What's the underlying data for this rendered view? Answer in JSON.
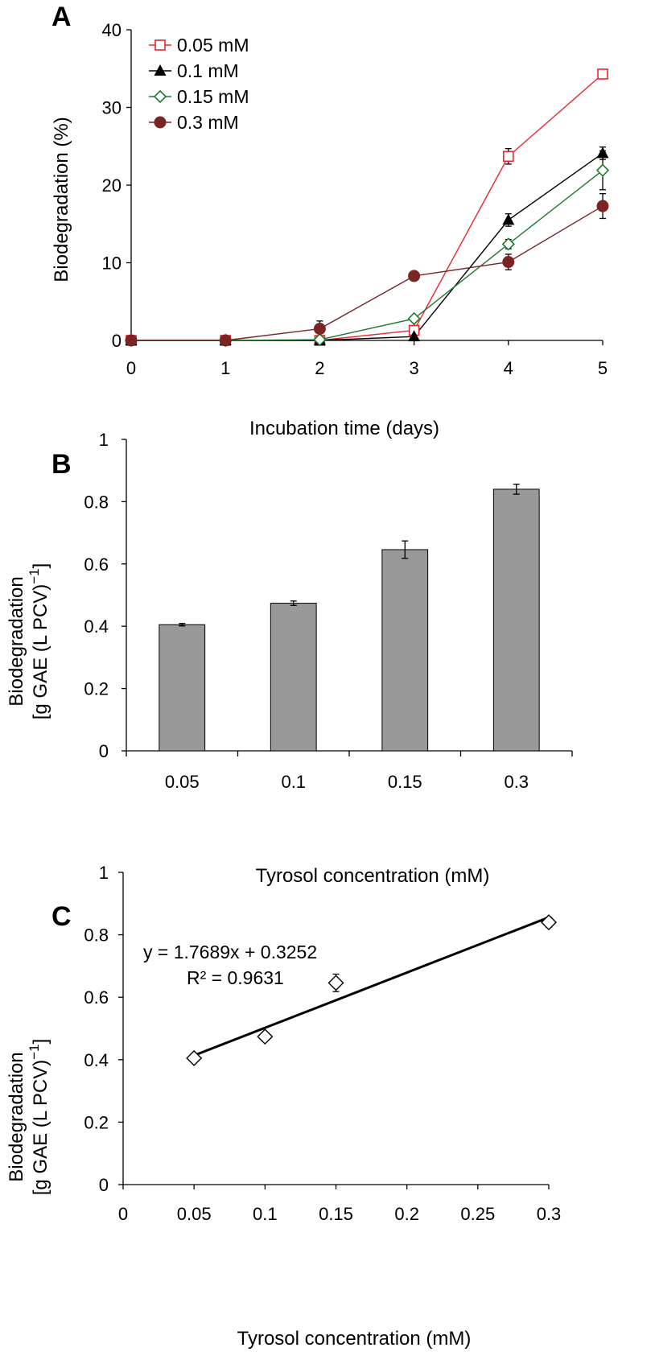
{
  "chart_data": [
    {
      "panel": "A",
      "type": "line",
      "xlabel": "Incubation time (days)",
      "ylabel": "Biodegradation (%)",
      "xlim": [
        0,
        5
      ],
      "ylim": [
        0,
        40
      ],
      "x": [
        0,
        1,
        2,
        3,
        4,
        5
      ],
      "xticks": [
        "0",
        "1",
        "2",
        "3",
        "4",
        "5"
      ],
      "yticks": [
        "0",
        "10",
        "20",
        "30",
        "40"
      ],
      "legend_position": "top-left",
      "series": [
        {
          "name": "0.05 mM",
          "color": "#e8262b",
          "marker": "square-open",
          "values": [
            0,
            0,
            0,
            1.3,
            23.7,
            34.3
          ],
          "errors": [
            0,
            0,
            0,
            0.3,
            1.0,
            0.4
          ]
        },
        {
          "name": "0.1 mM",
          "color": "#000000",
          "marker": "triangle-filled",
          "values": [
            0,
            0,
            0,
            0.5,
            15.5,
            24.1
          ],
          "errors": [
            0,
            0,
            0,
            0.3,
            0.8,
            0.8
          ]
        },
        {
          "name": "0.15 mM",
          "color": "#1c7a2e",
          "marker": "diamond-open",
          "values": [
            0,
            0,
            0.1,
            2.8,
            12.4,
            21.9
          ],
          "errors": [
            0,
            0,
            0,
            0.3,
            0.6,
            2.5
          ]
        },
        {
          "name": "0.3 mM",
          "color": "#7a2424",
          "marker": "circle-filled",
          "values": [
            0,
            0,
            1.5,
            8.3,
            10.1,
            17.3
          ],
          "errors": [
            0,
            0,
            1.0,
            0.3,
            1.0,
            1.6
          ]
        }
      ]
    },
    {
      "panel": "B",
      "type": "bar",
      "xlabel": "Tyrosol concentration (mM)",
      "ylabel_line1": "Biodegradation",
      "ylabel_line2": "[g GAE (L PCV)",
      "ylabel_sup": "−1",
      "ylabel_close": "]",
      "categories": [
        "0.05",
        "0.1",
        "0.15",
        "0.3"
      ],
      "values": [
        0.405,
        0.474,
        0.646,
        0.84
      ],
      "errors": [
        0.004,
        0.007,
        0.028,
        0.016
      ],
      "ylim": [
        0,
        1
      ],
      "yticks": [
        "0",
        "0.2",
        "0.4",
        "0.6",
        "0.8",
        "1"
      ],
      "bar_color": "#999999"
    },
    {
      "panel": "C",
      "type": "scatter",
      "xlabel": "Tyrosol concentration (mM)",
      "ylabel_line1": "Biodegradation",
      "ylabel_line2": "[g GAE (L PCV)",
      "ylabel_sup": "−1",
      "ylabel_close": "]",
      "x": [
        0.05,
        0.1,
        0.15,
        0.3
      ],
      "values": [
        0.405,
        0.474,
        0.646,
        0.84
      ],
      "errors": [
        0.004,
        0.007,
        0.028,
        0.016
      ],
      "xlim": [
        0,
        0.3
      ],
      "ylim": [
        0,
        1
      ],
      "xticks": [
        "0",
        "0.05",
        "0.1",
        "0.15",
        "0.2",
        "0.25",
        "0.3"
      ],
      "yticks": [
        "0",
        "0.2",
        "0.4",
        "0.6",
        "0.8",
        "1"
      ],
      "trendline": {
        "slope": 1.7689,
        "intercept": 0.3252,
        "x_from": 0.05,
        "x_to": 0.3
      },
      "equation": "y = 1.7689x + 0.3252",
      "r2_label": "R² = 0.9631"
    }
  ]
}
